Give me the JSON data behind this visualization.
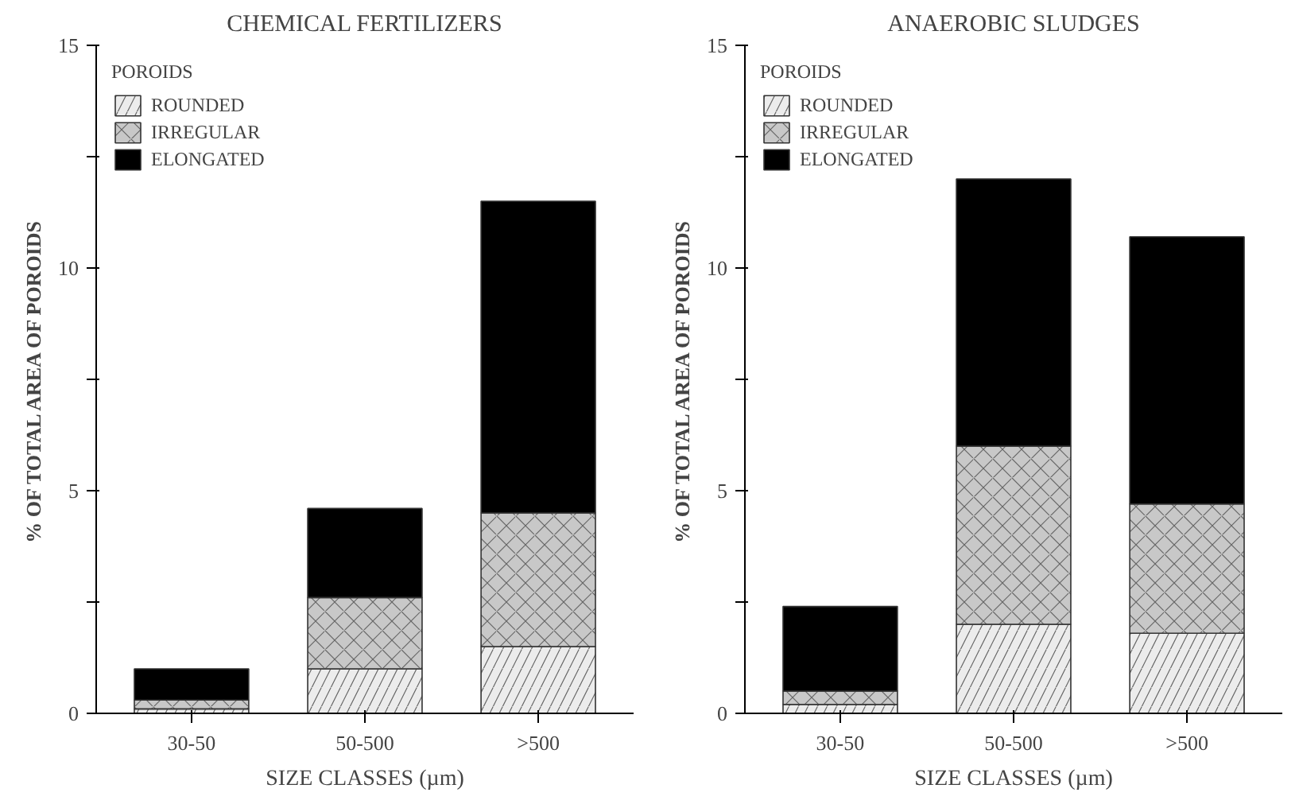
{
  "chart_data": [
    {
      "type": "bar",
      "title": "CHEMICAL FERTILIZERS",
      "xlabel": "SIZE CLASSES (µm)",
      "ylabel": "% OF TOTAL AREA OF POROIDS",
      "legend_title": "POROIDS",
      "categories": [
        "30-50",
        "50-500",
        ">500"
      ],
      "stacked": true,
      "ylim": [
        0,
        15
      ],
      "yticks": [
        0,
        {
          "value": 2.5,
          "label": null
        },
        5,
        {
          "value": 7.5,
          "label": null
        },
        10,
        {
          "value": 12.5,
          "label": null
        },
        15
      ],
      "legend": "top left",
      "grid": false,
      "series": [
        {
          "name": "ROUNDED",
          "color": "#ececec",
          "values": [
            0.1,
            1.0,
            1.5
          ]
        },
        {
          "name": "IRREGULAR",
          "color": "#c8c8c8",
          "values": [
            0.2,
            1.6,
            3.0
          ]
        },
        {
          "name": "ELONGATED",
          "color": "#000000",
          "values": [
            0.7,
            2.0,
            7.0
          ]
        }
      ]
    },
    {
      "type": "bar",
      "title": "ANAEROBIC SLUDGES",
      "xlabel": "SIZE CLASSES (µm)",
      "ylabel": "% OF TOTAL AREA OF POROIDS",
      "legend_title": "POROIDS",
      "categories": [
        "30-50",
        "50-500",
        ">500"
      ],
      "stacked": true,
      "ylim": [
        0,
        15
      ],
      "yticks": [
        0,
        {
          "value": 2.5,
          "label": null
        },
        5,
        {
          "value": 7.5,
          "label": null
        },
        10,
        {
          "value": 12.5,
          "label": null
        },
        15
      ],
      "legend": "top left",
      "grid": false,
      "series": [
        {
          "name": "ROUNDED",
          "color": "#ececec",
          "values": [
            0.2,
            2.0,
            1.8
          ]
        },
        {
          "name": "IRREGULAR",
          "color": "#c8c8c8",
          "values": [
            0.3,
            4.0,
            2.9
          ]
        },
        {
          "name": "ELONGATED",
          "color": "#000000",
          "values": [
            1.9,
            6.0,
            6.0
          ]
        }
      ]
    }
  ]
}
